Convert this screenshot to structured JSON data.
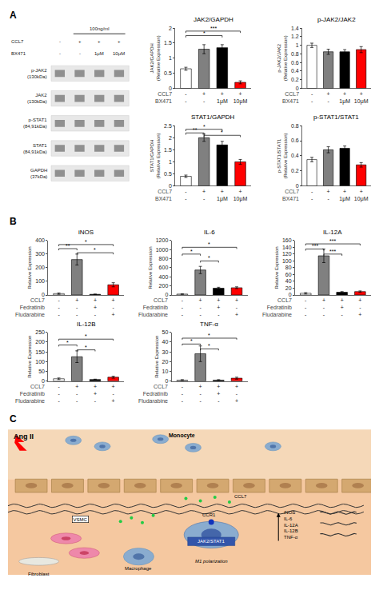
{
  "chart_data": [
    {
      "type": "panel",
      "title": "A",
      "charts": [
        {
          "type": "blot",
          "categories": [
            "p-JAK2\n(130kDa)",
            "JAK2\n(130kDa)",
            "p-STAT1\n(84,91kDa)",
            "STAT1\n(84,91kDa)",
            "GAPDH\n(37kDa)"
          ],
          "series": [
            {
              "name": "CCL7",
              "values": [
                "-",
                "+",
                "+",
                "+"
              ]
            },
            {
              "name": "BX471",
              "values": [
                "-",
                "-",
                "1μM",
                "10μM"
              ]
            }
          ],
          "annotations": [
            "100ng/ml"
          ]
        },
        {
          "type": "bar",
          "title": "JAK2/GAPDH",
          "ylabel": "JAK2/GAPDH\n(Relative Expression)",
          "xlabel": "CCL7\nBX471",
          "categories": [
            "-\n-",
            "+\n-",
            "+\n1μM",
            "+\n10μM"
          ],
          "values": [
            0.65,
            1.3,
            1.35,
            0.2
          ],
          "errors": [
            0.05,
            0.15,
            0.1,
            0.05
          ],
          "colors": [
            "white",
            "gray",
            "black",
            "red"
          ],
          "ylim": [
            0,
            2.0
          ],
          "yticks": [
            0,
            0.5,
            1,
            1.5,
            2
          ],
          "grid": false,
          "annotations": [
            {
              "x1": 0,
              "x2": 2,
              "y": 1.75,
              "text": "*"
            },
            {
              "x1": 0,
              "x2": 3,
              "y": 1.9,
              "text": "***"
            }
          ]
        },
        {
          "type": "bar",
          "title": "p-JAK2/JAK2",
          "ylabel": "p-JAK2/JAK2\n(Relative Expression)",
          "xlabel": "CCL7\nBX471",
          "categories": [
            "-\n-",
            "+\n-",
            "+\n1μM",
            "+\n10μM"
          ],
          "values": [
            1.0,
            0.85,
            0.85,
            0.9
          ],
          "errors": [
            0.05,
            0.06,
            0.05,
            0.07
          ],
          "colors": [
            "white",
            "gray",
            "black",
            "red"
          ],
          "ylim": [
            0,
            1.4
          ],
          "yticks": [
            0,
            0.2,
            0.4,
            0.6,
            0.8,
            1,
            1.2,
            1.4
          ],
          "grid": false,
          "annotations": []
        },
        {
          "type": "bar",
          "title": "STAT1/GAPDH",
          "ylabel": "STAT1/GAPDH\n(Relative Expression)",
          "xlabel": "CCL7\nBX471",
          "categories": [
            "-\n-",
            "+\n-",
            "+\n1μM",
            "+\n10μM"
          ],
          "values": [
            0.4,
            2.0,
            1.7,
            1.0
          ],
          "errors": [
            0.05,
            0.15,
            0.15,
            0.1
          ],
          "colors": [
            "white",
            "gray",
            "black",
            "red"
          ],
          "ylim": [
            0,
            2.5
          ],
          "yticks": [
            0,
            0.5,
            1,
            1.5,
            2,
            2.5
          ],
          "grid": false,
          "annotations": [
            {
              "x1": 0,
              "x2": 1,
              "y": 2.2,
              "text": "**"
            },
            {
              "x1": 0,
              "x2": 2,
              "y": 2.35,
              "text": "*"
            },
            {
              "x1": 1,
              "x2": 3,
              "y": 2.1,
              "text": "*"
            }
          ]
        },
        {
          "type": "bar",
          "title": "p-STAT1/STAT1",
          "ylabel": "p-STAT1/STAT1\n(Relative Expression)",
          "xlabel": "CCL7\nBX471",
          "categories": [
            "-\n-",
            "+\n-",
            "+\n1μM",
            "+\n10μM"
          ],
          "values": [
            0.35,
            0.48,
            0.5,
            0.28
          ],
          "errors": [
            0.03,
            0.04,
            0.03,
            0.03
          ],
          "colors": [
            "white",
            "gray",
            "black",
            "red"
          ],
          "ylim": [
            0,
            0.8
          ],
          "yticks": [
            0,
            0.2,
            0.4,
            0.6,
            0.8
          ],
          "grid": false,
          "annotations": []
        }
      ]
    },
    {
      "type": "panel",
      "title": "B",
      "charts": [
        {
          "type": "bar",
          "title": "iNOS",
          "ylabel": "Relative Expression",
          "xlabel": "CCL7\nFedratinib\nFludarabine",
          "categories": [
            "-\n-\n-",
            "+\n-\n-",
            "+\n+\n-",
            "+\n-\n+"
          ],
          "values": [
            10,
            260,
            5,
            75
          ],
          "errors": [
            5,
            40,
            2,
            15
          ],
          "colors": [
            "white",
            "gray",
            "black",
            "red"
          ],
          "ylim": [
            0,
            400
          ],
          "yticks": [
            0,
            100,
            200,
            300,
            400
          ],
          "grid": false,
          "annotations": [
            {
              "x1": 0,
              "x2": 1,
              "y": 340,
              "text": "**"
            },
            {
              "x1": 0,
              "x2": 3,
              "y": 370,
              "text": "*"
            },
            {
              "x1": 1,
              "x2": 3,
              "y": 310,
              "text": "*"
            }
          ]
        },
        {
          "type": "bar",
          "title": "IL-6",
          "ylabel": "Relative Expression",
          "xlabel": "CCL7\nFedratinib\nFludarabine",
          "categories": [
            "-\n-\n-",
            "+\n-\n-",
            "+\n+\n-",
            "+\n-\n+"
          ],
          "values": [
            20,
            550,
            150,
            160
          ],
          "errors": [
            8,
            80,
            20,
            20
          ],
          "colors": [
            "white",
            "gray",
            "black",
            "red"
          ],
          "ylim": [
            0,
            1200
          ],
          "yticks": [
            0,
            200,
            400,
            600,
            800,
            1000,
            1200
          ],
          "grid": false,
          "annotations": [
            {
              "x1": 0,
              "x2": 1,
              "y": 900,
              "text": "*"
            },
            {
              "x1": 0,
              "x2": 3,
              "y": 1050,
              "text": "*"
            },
            {
              "x1": 1,
              "x2": 2,
              "y": 750,
              "text": "*"
            }
          ]
        },
        {
          "type": "bar",
          "title": "IL-12A",
          "ylabel": "Relative Expression",
          "xlabel": "CCL7\nFedratinib\nFludarabine",
          "categories": [
            "-\n-\n-",
            "+\n-\n-",
            "+\n+\n-",
            "+\n-\n+"
          ],
          "values": [
            5,
            115,
            8,
            10
          ],
          "errors": [
            2,
            20,
            2,
            2
          ],
          "colors": [
            "white",
            "gray",
            "black",
            "red"
          ],
          "ylim": [
            0,
            160
          ],
          "yticks": [
            0,
            20,
            40,
            60,
            80,
            100,
            120,
            140,
            160
          ],
          "grid": false,
          "annotations": [
            {
              "x1": 0,
              "x2": 1,
              "y": 135,
              "text": "***"
            },
            {
              "x1": 0,
              "x2": 3,
              "y": 150,
              "text": "***"
            },
            {
              "x1": 1,
              "x2": 2,
              "y": 120,
              "text": "***"
            }
          ]
        },
        {
          "type": "bar",
          "title": "IL-12B",
          "ylabel": "Relative Expression",
          "xlabel": "CCL7\nFedratinib\nFludarabine",
          "categories": [
            "-\n-\n-",
            "+\n-\n-",
            "+\n+\n-",
            "+\n-\n+"
          ],
          "values": [
            12,
            125,
            8,
            20
          ],
          "errors": [
            4,
            30,
            2,
            5
          ],
          "colors": [
            "white",
            "gray",
            "black",
            "red"
          ],
          "ylim": [
            0,
            250
          ],
          "yticks": [
            0,
            50,
            100,
            150,
            200,
            250
          ],
          "grid": false,
          "annotations": [
            {
              "x1": 0,
              "x2": 1,
              "y": 185,
              "text": "*"
            },
            {
              "x1": 0,
              "x2": 3,
              "y": 215,
              "text": "*"
            },
            {
              "x1": 1,
              "x2": 2,
              "y": 160,
              "text": "*"
            }
          ]
        },
        {
          "type": "bar",
          "title": "TNF-α",
          "ylabel": "Relative Expression",
          "xlabel": "CCL7\nFedratinib\nFludarabine",
          "categories": [
            "-\n-\n-",
            "+\n-\n-",
            "+\n+\n-",
            "+\n-\n+"
          ],
          "values": [
            1,
            28,
            1,
            3
          ],
          "errors": [
            0.5,
            8,
            0.5,
            1
          ],
          "colors": [
            "white",
            "gray",
            "black",
            "red"
          ],
          "ylim": [
            0,
            50
          ],
          "yticks": [
            0,
            10,
            20,
            30,
            40,
            50
          ],
          "grid": false,
          "annotations": [
            {
              "x1": 0,
              "x2": 1,
              "y": 38,
              "text": "*"
            },
            {
              "x1": 0,
              "x2": 3,
              "y": 44,
              "text": "*"
            },
            {
              "x1": 1,
              "x2": 2,
              "y": 33,
              "text": "*"
            }
          ]
        }
      ]
    },
    {
      "type": "diagram",
      "title": "C",
      "annotations": [
        "Ang II",
        "Monocyte",
        "VSMC",
        "CCL7",
        "CCR1",
        "JAK2/STAT1",
        "M1 polarization",
        "Fibroblast",
        "Macrophage",
        "iNOS\nIL-6\nIL-12A\nIL-12B\nTNF-α"
      ]
    }
  ]
}
